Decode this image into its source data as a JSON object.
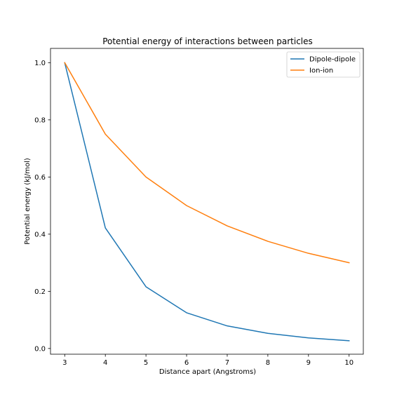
{
  "chart_data": {
    "type": "line",
    "title": "Potential energy of interactions between particles",
    "xlabel": "Distance apart (Angstroms)",
    "ylabel": "Potential energy (kJ/mol)",
    "x": [
      3,
      4,
      5,
      6,
      7,
      8,
      9,
      10
    ],
    "xlim": [
      2.65,
      10.35
    ],
    "ylim": [
      -0.02,
      1.05
    ],
    "xticks": [
      "3",
      "4",
      "5",
      "6",
      "7",
      "8",
      "9",
      "10"
    ],
    "yticks": [
      "0.0",
      "0.2",
      "0.4",
      "0.6",
      "0.8",
      "1.0"
    ],
    "grid": false,
    "legend_position": "top-right",
    "series": [
      {
        "name": "Dipole-dipole",
        "color": "#1f77b4",
        "values": [
          1.0,
          0.422,
          0.216,
          0.125,
          0.079,
          0.053,
          0.037,
          0.027
        ]
      },
      {
        "name": "Ion-ion",
        "color": "#ff7f0e",
        "values": [
          1.0,
          0.75,
          0.6,
          0.5,
          0.429,
          0.375,
          0.333,
          0.3
        ]
      }
    ]
  }
}
